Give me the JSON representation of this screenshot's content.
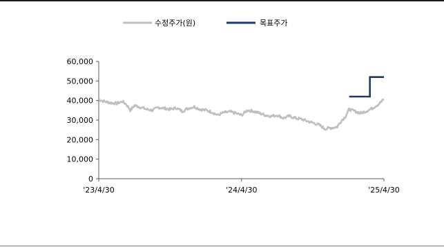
{
  "chart_data": {
    "type": "line",
    "title": "",
    "xlabel": "",
    "ylabel": "",
    "ylim": [
      0,
      60000
    ],
    "yticks": [
      0,
      10000,
      20000,
      30000,
      40000,
      50000,
      60000
    ],
    "ytick_labels": [
      "0",
      "10,000",
      "20,000",
      "30,000",
      "40,000",
      "50,000",
      "60,000"
    ],
    "xlim": [
      "2023-04-30",
      "2025-04-30"
    ],
    "xticks": [
      "2023-04-30",
      "2024-04-30",
      "2025-04-30"
    ],
    "xtick_labels": [
      "'23/4/30",
      "'24/4/30",
      "'25/4/30"
    ],
    "legend_position": "top",
    "grid": false,
    "series": [
      {
        "name": "수정주가(원)",
        "color": "#bfbfbf",
        "points": [
          [
            "2023-04-30",
            40500
          ],
          [
            "2023-05-15",
            39500
          ],
          [
            "2023-05-31",
            38800
          ],
          [
            "2023-06-15",
            38500
          ],
          [
            "2023-06-30",
            39500
          ],
          [
            "2023-07-10",
            38000
          ],
          [
            "2023-07-20",
            35000
          ],
          [
            "2023-07-31",
            37500
          ],
          [
            "2023-08-15",
            36500
          ],
          [
            "2023-08-31",
            35500
          ],
          [
            "2023-09-15",
            35000
          ],
          [
            "2023-09-30",
            36500
          ],
          [
            "2023-10-15",
            36000
          ],
          [
            "2023-10-31",
            35500
          ],
          [
            "2023-11-15",
            36200
          ],
          [
            "2023-11-30",
            34500
          ],
          [
            "2023-12-15",
            36000
          ],
          [
            "2023-12-31",
            36800
          ],
          [
            "2024-01-15",
            35500
          ],
          [
            "2024-01-31",
            35000
          ],
          [
            "2024-02-15",
            34000
          ],
          [
            "2024-02-29",
            32500
          ],
          [
            "2024-03-15",
            33800
          ],
          [
            "2024-03-31",
            34200
          ],
          [
            "2024-04-15",
            33500
          ],
          [
            "2024-04-30",
            32500
          ],
          [
            "2024-05-15",
            35000
          ],
          [
            "2024-05-31",
            34500
          ],
          [
            "2024-06-15",
            33500
          ],
          [
            "2024-06-30",
            32500
          ],
          [
            "2024-07-15",
            32000
          ],
          [
            "2024-07-31",
            32500
          ],
          [
            "2024-08-15",
            31000
          ],
          [
            "2024-08-31",
            32000
          ],
          [
            "2024-09-15",
            31000
          ],
          [
            "2024-09-30",
            30500
          ],
          [
            "2024-10-15",
            29500
          ],
          [
            "2024-10-31",
            28500
          ],
          [
            "2024-11-15",
            27500
          ],
          [
            "2024-11-30",
            25500
          ],
          [
            "2024-12-15",
            26000
          ],
          [
            "2024-12-31",
            26500
          ],
          [
            "2025-01-10",
            29500
          ],
          [
            "2025-01-20",
            31500
          ],
          [
            "2025-01-31",
            35500
          ],
          [
            "2025-02-15",
            34500
          ],
          [
            "2025-02-28",
            33500
          ],
          [
            "2025-03-15",
            34500
          ],
          [
            "2025-03-31",
            36000
          ],
          [
            "2025-04-15",
            38000
          ],
          [
            "2025-04-30",
            40500
          ]
        ]
      },
      {
        "name": "목표주가",
        "color": "#1f3864",
        "points": [
          [
            "2025-01-31",
            42000
          ],
          [
            "2025-03-25",
            42000
          ],
          [
            "2025-03-25",
            52000
          ],
          [
            "2025-04-30",
            52000
          ]
        ]
      }
    ]
  }
}
